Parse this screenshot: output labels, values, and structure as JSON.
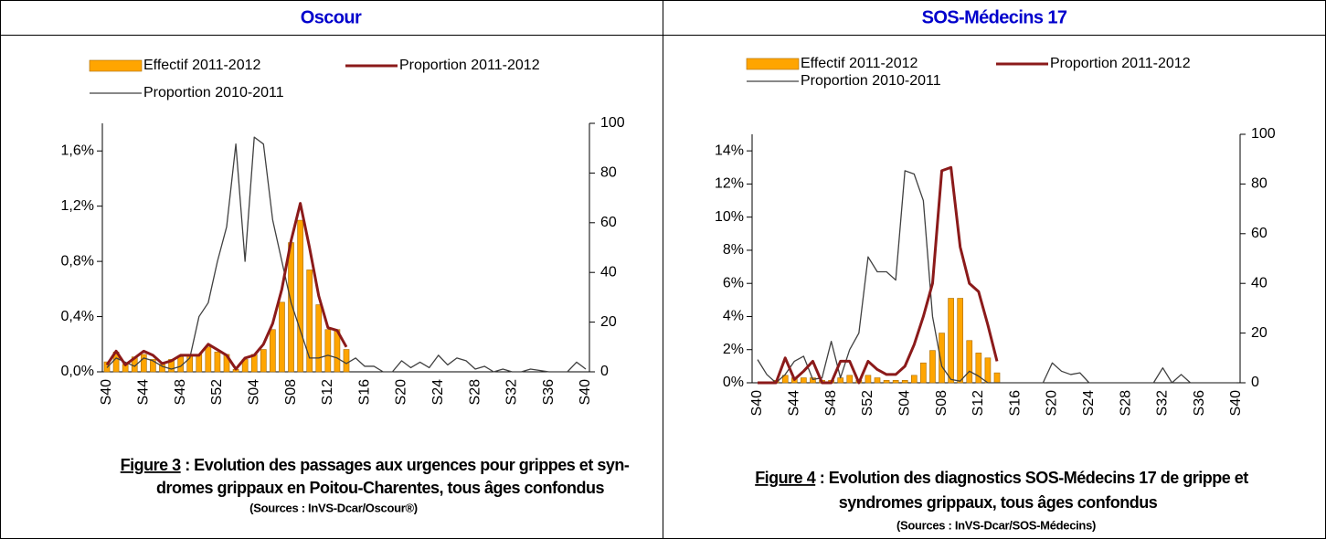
{
  "panels": [
    {
      "title": "Oscour",
      "figure_label": "Figure 3",
      "caption_lines": [
        " : Evolution des passages aux urgences pour grippes et syn-",
        "dromes grippaux en Poitou-Charentes, tous âges confondus"
      ],
      "source": "(Sources : InVS-Dcar/Oscour®)"
    },
    {
      "title": "SOS-Médecins 17",
      "figure_label": "Figure 4",
      "caption_lines": [
        " : Evolution des diagnostics SOS-Médecins 17 de grippe et",
        "syndromes grippaux, tous âges confondus"
      ],
      "source": "(Sources : InVS-Dcar/SOS-Médecins)"
    }
  ],
  "chart_data": [
    {
      "type": "combo",
      "categories": [
        "S40",
        null,
        null,
        null,
        "S44",
        null,
        null,
        null,
        "S48",
        null,
        null,
        null,
        "S52",
        null,
        null,
        null,
        "S04",
        null,
        null,
        null,
        "S08",
        null,
        null,
        null,
        "S12",
        null,
        null,
        null,
        "S16",
        null,
        null,
        null,
        "S20",
        null,
        null,
        null,
        "S24",
        null,
        null,
        null,
        "S28",
        null,
        null,
        null,
        "S32",
        null,
        null,
        null,
        "S36",
        null,
        null,
        null,
        "S40"
      ],
      "ylim": [
        0,
        1.8
      ],
      "yticks": [
        {
          "value": 0,
          "label": "0,0%"
        },
        {
          "value": 0.4,
          "label": "0,4%"
        },
        {
          "value": 0.8,
          "label": "0,8%"
        },
        {
          "value": 1.2,
          "label": "1,2%"
        },
        {
          "value": 1.6,
          "label": "1,6%"
        }
      ],
      "y2lim": [
        0,
        100
      ],
      "y2ticks": [
        0,
        20,
        40,
        60,
        80,
        100
      ],
      "series": [
        {
          "name": "Effectif 2011-2012",
          "type": "bar",
          "axis": "y2",
          "color": "#ffa500",
          "values": [
            4,
            8,
            3,
            6,
            7,
            5,
            3,
            5,
            6,
            7,
            7,
            10,
            8,
            7,
            1,
            5,
            7,
            9,
            17,
            28,
            52,
            61,
            41,
            27,
            17,
            17,
            9,
            null,
            null,
            null,
            null,
            null,
            null,
            null,
            null,
            null,
            null,
            null,
            null,
            null,
            null,
            null,
            null,
            null,
            null,
            null,
            null,
            null,
            null,
            null,
            null,
            null,
            null
          ]
        },
        {
          "name": "Proportion 2011-2012",
          "type": "line",
          "color": "#8b1a1a",
          "values": [
            0.05,
            0.15,
            0.05,
            0.1,
            0.15,
            0.12,
            0.06,
            0.08,
            0.12,
            0.12,
            0.12,
            0.2,
            0.16,
            0.12,
            0.02,
            0.1,
            0.12,
            0.2,
            0.35,
            0.6,
            0.95,
            1.22,
            0.9,
            0.55,
            0.32,
            0.3,
            0.18,
            null,
            null,
            null,
            null,
            null,
            null,
            null,
            null,
            null,
            null,
            null,
            null,
            null,
            null,
            null,
            null,
            null,
            null,
            null,
            null,
            null,
            null,
            null,
            null,
            null,
            null
          ]
        },
        {
          "name": "Proportion 2010-2011",
          "type": "line",
          "color": "#404040",
          "values": [
            0.03,
            0.1,
            0.07,
            0.04,
            0.1,
            0.08,
            0.04,
            0.02,
            0.04,
            0.1,
            0.4,
            0.5,
            0.8,
            1.05,
            1.65,
            0.8,
            1.7,
            1.65,
            1.1,
            0.8,
            0.5,
            0.3,
            0.1,
            0.1,
            0.12,
            0.1,
            0.06,
            0.1,
            0.04,
            0.04,
            0,
            0,
            0.08,
            0.03,
            0.07,
            0.03,
            0.12,
            0.05,
            0.1,
            0.08,
            0.02,
            0.04,
            0,
            0.02,
            0,
            0,
            0.02,
            0.01,
            0,
            0,
            0,
            0.07,
            0.02
          ]
        }
      ]
    },
    {
      "type": "combo",
      "categories": [
        "S40",
        null,
        null,
        null,
        "S44",
        null,
        null,
        null,
        "S48",
        null,
        null,
        null,
        "S52",
        null,
        null,
        null,
        "S04",
        null,
        null,
        null,
        "S08",
        null,
        null,
        null,
        "S12",
        null,
        null,
        null,
        "S16",
        null,
        null,
        null,
        "S20",
        null,
        null,
        null,
        "S24",
        null,
        null,
        null,
        "S28",
        null,
        null,
        null,
        "S32",
        null,
        null,
        null,
        "S36",
        null,
        null,
        null,
        "S40"
      ],
      "ylim": [
        0,
        15
      ],
      "yticks": [
        {
          "value": 0,
          "label": "0%"
        },
        {
          "value": 2,
          "label": "2%"
        },
        {
          "value": 4,
          "label": "4%"
        },
        {
          "value": 6,
          "label": "6%"
        },
        {
          "value": 8,
          "label": "8%"
        },
        {
          "value": 10,
          "label": "10%"
        },
        {
          "value": 12,
          "label": "12%"
        },
        {
          "value": 14,
          "label": "14%"
        }
      ],
      "y2lim": [
        0,
        100
      ],
      "y2ticks": [
        0,
        20,
        40,
        60,
        80,
        100
      ],
      "series": [
        {
          "name": "Effectif 2011-2012",
          "type": "bar",
          "axis": "y2",
          "color": "#ffa500",
          "values": [
            0,
            0,
            1,
            3,
            2,
            2,
            2,
            1,
            1,
            2,
            3,
            1,
            3,
            2,
            1,
            1,
            1,
            3,
            8,
            13,
            20,
            34,
            34,
            17,
            12,
            10,
            4,
            null,
            null,
            null,
            null,
            null,
            null,
            null,
            null,
            null,
            null,
            null,
            null,
            null,
            null,
            null,
            null,
            null,
            null,
            null,
            null,
            null,
            null,
            null,
            null,
            null,
            null
          ]
        },
        {
          "name": "Proportion 2011-2012",
          "type": "line",
          "color": "#8b1a1a",
          "values": [
            0,
            0,
            0,
            1.5,
            0.2,
            0.7,
            1.3,
            0,
            0,
            1.3,
            1.3,
            0,
            1.3,
            0.8,
            0.5,
            0.5,
            1.0,
            2.3,
            4,
            6,
            12.8,
            13,
            8.2,
            6,
            5.5,
            3.5,
            1.3,
            null,
            null,
            null,
            null,
            null,
            null,
            null,
            null,
            null,
            null,
            null,
            null,
            null,
            null,
            null,
            null,
            null,
            null,
            null,
            null,
            null,
            null,
            null,
            null,
            null,
            null
          ]
        },
        {
          "name": "Proportion 2010-2011",
          "type": "line",
          "color": "#404040",
          "values": [
            1.4,
            0.5,
            0,
            0.5,
            1.3,
            1.6,
            0.2,
            0.3,
            2.5,
            0.3,
            2,
            3,
            7.6,
            6.7,
            6.7,
            6.2,
            12.8,
            12.6,
            11,
            4,
            1.0,
            0.2,
            0.1,
            0.7,
            0.4,
            0,
            0,
            0,
            0,
            0,
            0,
            0,
            1.2,
            0.7,
            0.5,
            0.6,
            0,
            0,
            0,
            0,
            0,
            0,
            0,
            0,
            0.9,
            0,
            0.5,
            0,
            0,
            0,
            0,
            0,
            0
          ]
        }
      ]
    }
  ]
}
